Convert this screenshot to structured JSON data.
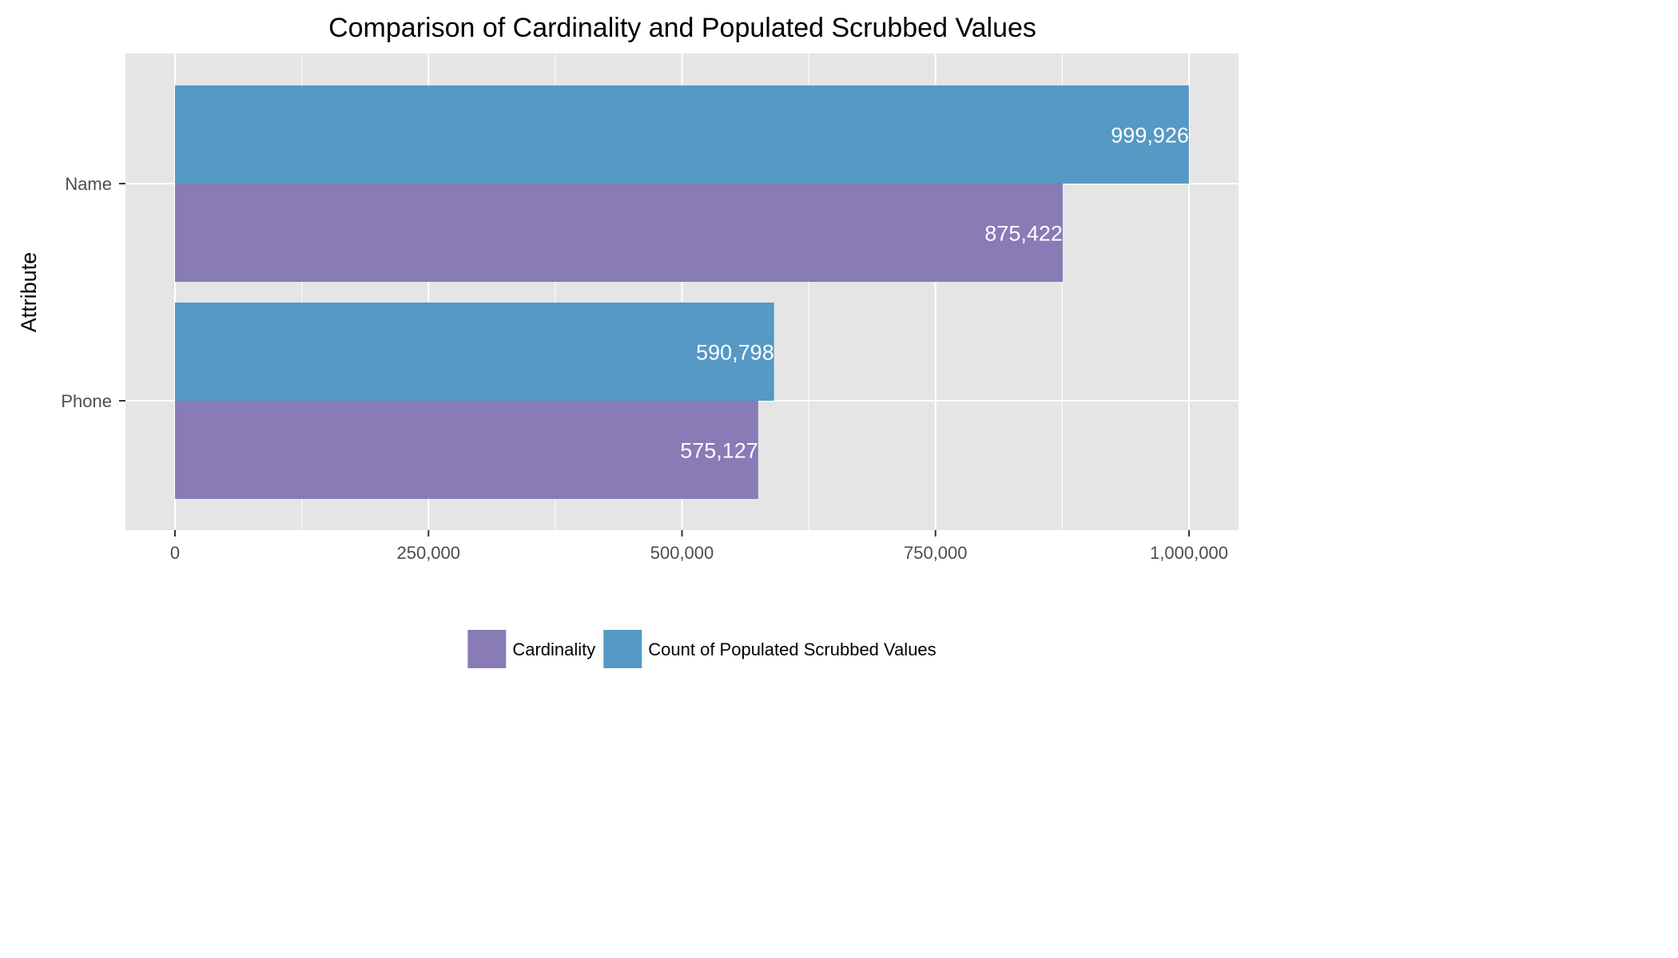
{
  "chart_data": {
    "type": "bar",
    "orientation": "horizontal",
    "title": "Comparison of Cardinality and Populated Scrubbed Values",
    "xlabel": "",
    "ylabel": "Attribute",
    "categories": [
      "Name",
      "Phone"
    ],
    "series": [
      {
        "name": "Count of Populated Scrubbed Values",
        "values": [
          999926,
          590798
        ],
        "labels": [
          "999,926",
          "590,798"
        ],
        "color": "#5599c4"
      },
      {
        "name": "Cardinality",
        "values": [
          875422,
          575127
        ],
        "labels": [
          "875,422",
          "575,127"
        ],
        "color": "#887bb6"
      }
    ],
    "legend_order": [
      "Cardinality",
      "Count of Populated Scrubbed Values"
    ],
    "xlim": [
      -50000,
      1050000
    ],
    "xticks": [
      0,
      250000,
      500000,
      750000,
      1000000
    ],
    "xtick_labels": [
      "0",
      "250,000",
      "500,000",
      "750,000",
      "1,000,000"
    ],
    "grid": true,
    "legend_position": "bottom",
    "panel_background": "#e5e5e5",
    "grid_color": "#ffffff"
  }
}
